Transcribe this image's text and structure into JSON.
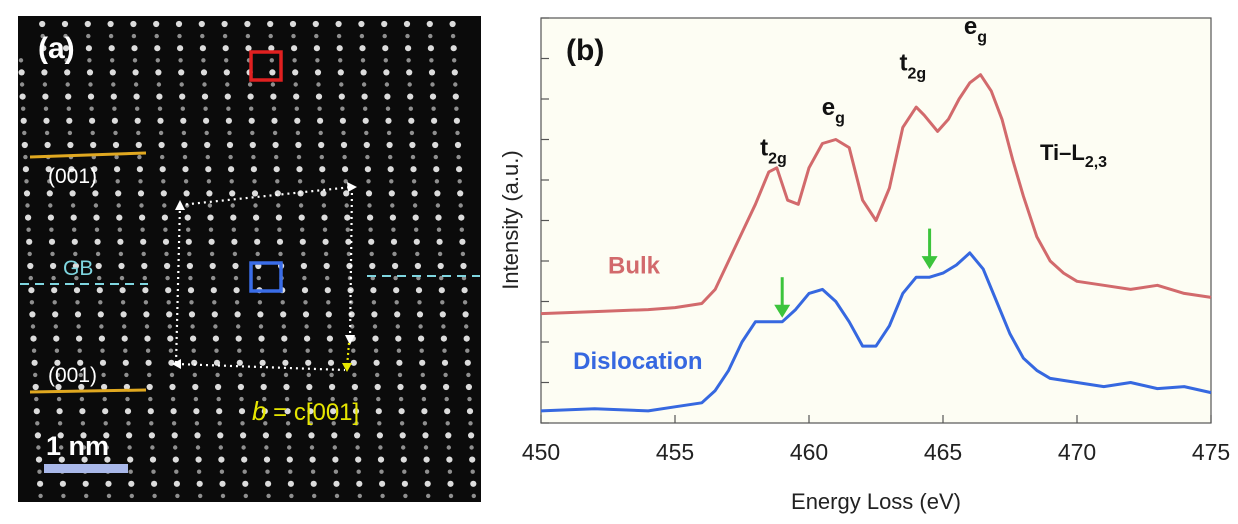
{
  "panel_a": {
    "label": "(a)",
    "plane_top": "(001)",
    "plane_bottom": "(001)",
    "gb_label": "GB",
    "burgers_b": "b",
    "burgers_rest": " = c[001]",
    "scale_text": "1 nm",
    "colors": {
      "background": "#0b0b0b",
      "atom": "#e8e8e8",
      "plane_line": "#e0a820",
      "gb_line": "#7fd6e0",
      "box_red": "#e02020",
      "box_blue": "#3a6de8",
      "burgers": "#e6e600",
      "scale_bar": "#a9b8ea"
    }
  },
  "chart_data": {
    "type": "line",
    "panel_label": "(b)",
    "title": "",
    "xlabel": "Energy Loss (eV)",
    "ylabel": "Intensity (a.u.)",
    "xlim": [
      450,
      475
    ],
    "ylim": [
      0,
      10
    ],
    "xticks": [
      "450",
      "455",
      "460",
      "465",
      "470",
      "475"
    ],
    "edge_label_main": "Ti–L",
    "edge_label_sub": "2,3",
    "peak_labels": [
      {
        "main": "t",
        "sub": "2g",
        "x": 458.7,
        "y": 6.6
      },
      {
        "main": "e",
        "sub": "g",
        "x": 461.0,
        "y": 7.6
      },
      {
        "main": "t",
        "sub": "2g",
        "x": 463.9,
        "y": 8.7
      },
      {
        "main": "e",
        "sub": "g",
        "x": 466.3,
        "y": 9.6
      }
    ],
    "arrows": [
      {
        "x": 459.0,
        "y_top": 3.6,
        "y_tip": 2.6
      },
      {
        "x": 464.5,
        "y_top": 4.8,
        "y_tip": 3.8
      }
    ],
    "series": [
      {
        "name": "Bulk",
        "color": "#d26a6c",
        "x": [
          450,
          452,
          454,
          455,
          456,
          456.5,
          457,
          457.5,
          458,
          458.5,
          458.8,
          459.2,
          459.6,
          460,
          460.5,
          461,
          461.5,
          462,
          462.5,
          463,
          463.5,
          464,
          464.3,
          464.8,
          465.2,
          465.6,
          466,
          466.4,
          466.8,
          467.2,
          467.6,
          468,
          468.5,
          469,
          469.5,
          470,
          471,
          472,
          473,
          474,
          475
        ],
        "y": [
          2.7,
          2.75,
          2.8,
          2.85,
          2.95,
          3.3,
          4.0,
          4.7,
          5.4,
          6.2,
          6.3,
          5.5,
          5.4,
          6.3,
          6.9,
          7.0,
          6.8,
          5.5,
          5.0,
          5.8,
          7.3,
          7.8,
          7.6,
          7.2,
          7.5,
          8.0,
          8.4,
          8.6,
          8.2,
          7.5,
          6.5,
          5.6,
          4.6,
          4.0,
          3.7,
          3.5,
          3.4,
          3.3,
          3.4,
          3.2,
          3.1
        ]
      },
      {
        "name": "Dislocation",
        "color": "#3668e0",
        "x": [
          450,
          452,
          454,
          455,
          456,
          456.5,
          457,
          457.5,
          458,
          458.5,
          459,
          459.5,
          460,
          460.5,
          461,
          461.5,
          462,
          462.5,
          463,
          463.5,
          464,
          464.5,
          465,
          465.5,
          466,
          466.5,
          467,
          467.5,
          468,
          468.5,
          469,
          470,
          471,
          472,
          473,
          474,
          475
        ],
        "y": [
          0.3,
          0.35,
          0.3,
          0.4,
          0.5,
          0.8,
          1.3,
          2.0,
          2.5,
          2.5,
          2.5,
          2.8,
          3.2,
          3.3,
          3.0,
          2.5,
          1.9,
          1.9,
          2.4,
          3.2,
          3.6,
          3.6,
          3.7,
          3.9,
          4.2,
          3.8,
          3.0,
          2.2,
          1.6,
          1.3,
          1.1,
          1.0,
          0.9,
          1.0,
          0.85,
          0.9,
          0.75
        ]
      }
    ],
    "series_label_positions": [
      "left",
      "left"
    ]
  }
}
